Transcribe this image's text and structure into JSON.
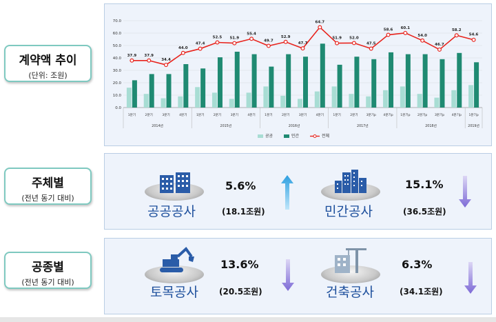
{
  "sections": {
    "contract": {
      "title": "계약액 추이",
      "sub": "(단위: 조원)"
    },
    "entity": {
      "title": "주체별",
      "sub": "(전년 동기 대비)"
    },
    "type": {
      "title": "공종별",
      "sub": "(전년 동기 대비)"
    }
  },
  "cards": {
    "public": {
      "name": "공공공사",
      "pct": "5.6%",
      "amount": "(18.1조원)",
      "direction": "up",
      "icon": "building-icon"
    },
    "private": {
      "name": "민간공사",
      "pct": "15.1%",
      "amount": "(36.5조원)",
      "direction": "down",
      "icon": "city-icon"
    },
    "civil": {
      "name": "토목공사",
      "pct": "13.6%",
      "amount": "(20.5조원)",
      "direction": "down",
      "icon": "excavator-icon"
    },
    "building": {
      "name": "건축공사",
      "pct": "6.3%",
      "amount": "(34.1조원)",
      "direction": "down",
      "icon": "crane-icon"
    }
  },
  "colors": {
    "public": "#a8ddd4",
    "private": "#1f8a72",
    "total": "#e8231c",
    "accent_text": "#1d4f9c",
    "up_arrow": "#34a7e6",
    "down_arrow": "#8a78d8"
  },
  "chart_data": {
    "type": "bar",
    "ylim": [
      0,
      70
    ],
    "yticks": [
      "0.0",
      "10.0",
      "20.0",
      "30.0",
      "40.0",
      "50.0",
      "60.0",
      "70.0"
    ],
    "grid": true,
    "legend_position": "bottom",
    "categories": [
      "1분기",
      "2분기",
      "3분기",
      "4분기",
      "1분기",
      "2분기",
      "3분기",
      "4분기",
      "1분기",
      "2분기",
      "3분기",
      "4분기",
      "1분기",
      "2분기",
      "3분기p",
      "4분기p",
      "1분기p",
      "2분기p",
      "3분기p",
      "4분기p",
      "1분기p"
    ],
    "years": [
      {
        "label": "2014년",
        "span": 4
      },
      {
        "label": "2015년",
        "span": 4
      },
      {
        "label": "2016년",
        "span": 4
      },
      {
        "label": "2017년",
        "span": 4
      },
      {
        "label": "2018년",
        "span": 4
      },
      {
        "label": "2019년",
        "span": 1
      }
    ],
    "series": [
      {
        "name": "공공",
        "values": [
          16.0,
          11.0,
          7.5,
          9.0,
          16.5,
          12.0,
          7.0,
          12.0,
          17.0,
          9.5,
          7.0,
          13.0,
          17.0,
          11.0,
          9.0,
          14.0,
          17.0,
          11.0,
          8.0,
          14.0,
          18.1
        ]
      },
      {
        "name": "민간",
        "values": [
          22.0,
          27.0,
          27.0,
          35.0,
          31.5,
          40.5,
          45.0,
          43.0,
          33.0,
          43.0,
          41.0,
          51.5,
          34.5,
          41.0,
          39.0,
          44.5,
          43.0,
          43.0,
          39.0,
          44.0,
          36.5
        ]
      },
      {
        "name": "전체",
        "values": [
          37.9,
          37.9,
          34.4,
          44.0,
          47.4,
          52.5,
          51.9,
          55.4,
          49.7,
          52.9,
          47.7,
          64.7,
          51.9,
          52.0,
          47.5,
          58.6,
          60.1,
          54.0,
          46.7,
          58.2,
          54.6
        ]
      }
    ]
  }
}
